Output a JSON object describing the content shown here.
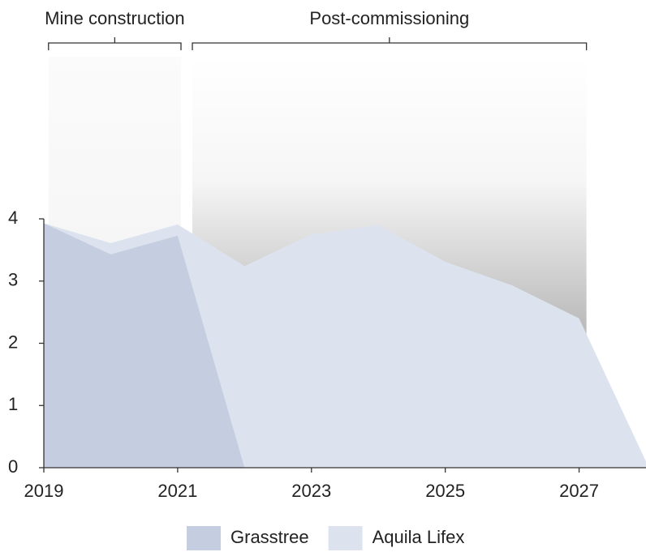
{
  "chart_data": {
    "type": "area",
    "x": [
      2019,
      2020,
      2021,
      2022,
      2023,
      2024,
      2025,
      2026,
      2027,
      2028
    ],
    "series": [
      {
        "name": "Aquila Lifex",
        "color": "#dde3ee",
        "values": [
          3.93,
          3.61,
          3.91,
          3.24,
          3.75,
          3.9,
          3.31,
          2.93,
          2.4,
          0.1
        ]
      },
      {
        "name": "Grasstree",
        "color": "#c5cee0",
        "values": [
          3.93,
          3.43,
          3.73,
          0,
          null,
          null,
          null,
          null,
          null,
          null
        ]
      }
    ],
    "legend_order": [
      "Grasstree",
      "Aquila Lifex"
    ],
    "xlim": [
      2019,
      2028
    ],
    "xticks": [
      2019,
      2021,
      2023,
      2025,
      2027
    ],
    "ylim": [
      0,
      4
    ],
    "yticks": [
      0,
      1,
      2,
      3,
      4
    ],
    "grid": false,
    "legend": "bottom",
    "periods": [
      {
        "label": "Mine construction",
        "start": 2019.07,
        "end": 2021.05
      },
      {
        "label": "Post-commissioning",
        "start": 2021.22,
        "end": 2027.11
      }
    ]
  }
}
